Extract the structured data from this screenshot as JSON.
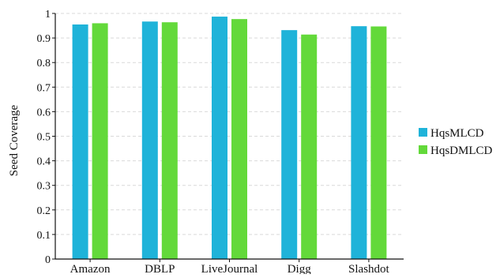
{
  "chart_data": {
    "type": "bar",
    "title": "",
    "xlabel": "",
    "ylabel": "Seed Coverage",
    "ylim": [
      0,
      1
    ],
    "yticks": [
      0,
      0.1,
      0.2,
      0.3,
      0.4,
      0.5,
      0.6,
      0.7,
      0.8,
      0.9,
      1
    ],
    "ytick_labels": [
      "0",
      "0.1",
      "0.2",
      "0.3",
      "0.4",
      "0.5",
      "0.6",
      "0.7",
      "0.8",
      "0.9",
      "1"
    ],
    "grid": true,
    "legend_position": "right",
    "categories": [
      "Amazon",
      "DBLP",
      "LiveJournal",
      "Digg",
      "Slashdot"
    ],
    "series": [
      {
        "name": "HqsMLCD",
        "color": "#1fb3d9",
        "values": [
          0.955,
          0.967,
          0.987,
          0.932,
          0.948
        ]
      },
      {
        "name": "HqsDMLCD",
        "color": "#63d93a",
        "values": [
          0.96,
          0.964,
          0.977,
          0.914,
          0.947
        ]
      }
    ]
  }
}
